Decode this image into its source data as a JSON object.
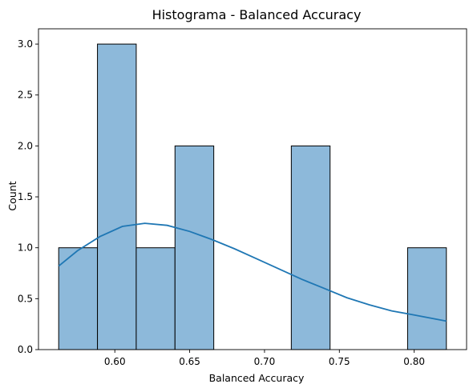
{
  "chart_data": {
    "type": "bar",
    "title": "Histograma - Balanced Accuracy",
    "xlabel": "Balanced Accuracy",
    "ylabel": "Count",
    "bins": [
      {
        "start": 0.5625,
        "end": 0.5884,
        "count": 1
      },
      {
        "start": 0.5884,
        "end": 0.6143,
        "count": 3
      },
      {
        "start": 0.6143,
        "end": 0.6402,
        "count": 1
      },
      {
        "start": 0.6402,
        "end": 0.6661,
        "count": 2
      },
      {
        "start": 0.6661,
        "end": 0.692,
        "count": 0
      },
      {
        "start": 0.692,
        "end": 0.7179,
        "count": 0
      },
      {
        "start": 0.7179,
        "end": 0.7438,
        "count": 2
      },
      {
        "start": 0.7438,
        "end": 0.7697,
        "count": 0
      },
      {
        "start": 0.7697,
        "end": 0.7956,
        "count": 0
      },
      {
        "start": 0.7956,
        "end": 0.8215,
        "count": 1
      }
    ],
    "kde": {
      "x": [
        0.5625,
        0.575,
        0.59,
        0.605,
        0.62,
        0.635,
        0.65,
        0.665,
        0.68,
        0.695,
        0.71,
        0.725,
        0.74,
        0.755,
        0.77,
        0.785,
        0.8,
        0.8215
      ],
      "y": [
        0.82,
        0.97,
        1.11,
        1.21,
        1.24,
        1.22,
        1.16,
        1.08,
        0.99,
        0.89,
        0.79,
        0.69,
        0.6,
        0.51,
        0.44,
        0.38,
        0.34,
        0.28
      ]
    },
    "xlim": [
      0.549,
      0.835
    ],
    "ylim": [
      0,
      3.15
    ],
    "xticks": [
      "0.60",
      "0.65",
      "0.70",
      "0.75",
      "0.80"
    ],
    "yticks": [
      "0.0",
      "0.5",
      "1.0",
      "1.5",
      "2.0",
      "2.5",
      "3.0"
    ],
    "colors": {
      "bar_fill": "#8db9da",
      "bar_edge": "#000000",
      "kde_line": "#1f77b4"
    },
    "grid": false
  }
}
